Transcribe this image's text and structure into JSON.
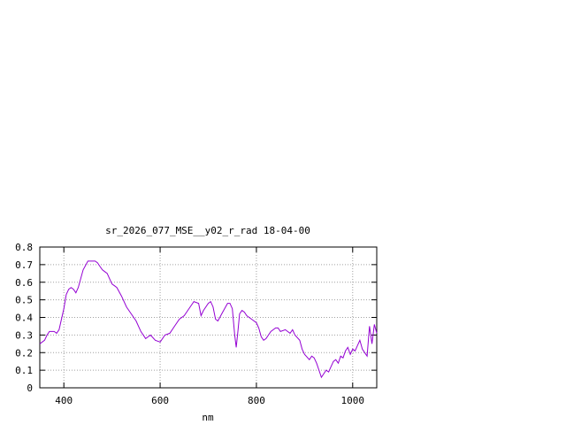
{
  "chart_data": {
    "type": "line",
    "title": "sr_2026_077_MSE__y02_r_rad 18-04-00",
    "xlabel": "nm",
    "ylabel": "",
    "xlim": [
      350,
      1050
    ],
    "ylim": [
      0,
      0.8
    ],
    "x_ticks": [
      400,
      600,
      800,
      1000
    ],
    "x_tick_labels": [
      "400",
      "600",
      "800",
      "1000"
    ],
    "y_ticks": [
      0,
      0.1,
      0.2,
      0.3,
      0.4,
      0.5,
      0.6,
      0.7,
      0.8
    ],
    "y_tick_labels": [
      "0",
      "0.1",
      "0.2",
      "0.3",
      "0.4",
      "0.5",
      "0.6",
      "0.7",
      "0.8"
    ],
    "grid": true,
    "legend": "none",
    "line_color": "#9400d3",
    "series": [
      {
        "x": [
          350,
          360,
          365,
          370,
          380,
          385,
          390,
          400,
          405,
          410,
          415,
          420,
          425,
          430,
          440,
          450,
          460,
          465,
          470,
          475,
          480,
          485,
          490,
          495,
          500,
          505,
          510,
          520,
          530,
          540,
          550,
          560,
          570,
          580,
          590,
          600,
          610,
          620,
          630,
          640,
          650,
          660,
          670,
          680,
          685,
          690,
          700,
          705,
          710,
          715,
          720,
          730,
          740,
          745,
          750,
          755,
          758,
          762,
          765,
          770,
          775,
          780,
          790,
          800,
          805,
          810,
          815,
          820,
          830,
          840,
          845,
          850,
          860,
          870,
          875,
          880,
          890,
          895,
          900,
          910,
          915,
          920,
          925,
          930,
          935,
          940,
          945,
          950,
          955,
          960,
          965,
          970,
          975,
          980,
          985,
          990,
          995,
          1000,
          1005,
          1010,
          1015,
          1020,
          1025,
          1030,
          1035,
          1040,
          1045,
          1050
        ],
        "y": [
          0.25,
          0.27,
          0.3,
          0.32,
          0.32,
          0.31,
          0.33,
          0.45,
          0.53,
          0.56,
          0.57,
          0.56,
          0.54,
          0.57,
          0.67,
          0.72,
          0.72,
          0.72,
          0.71,
          0.69,
          0.67,
          0.66,
          0.65,
          0.62,
          0.59,
          0.58,
          0.57,
          0.52,
          0.46,
          0.42,
          0.38,
          0.32,
          0.28,
          0.3,
          0.27,
          0.26,
          0.3,
          0.31,
          0.35,
          0.39,
          0.41,
          0.45,
          0.49,
          0.48,
          0.41,
          0.44,
          0.48,
          0.49,
          0.46,
          0.39,
          0.38,
          0.43,
          0.48,
          0.48,
          0.45,
          0.3,
          0.23,
          0.33,
          0.42,
          0.44,
          0.43,
          0.41,
          0.39,
          0.37,
          0.34,
          0.29,
          0.27,
          0.28,
          0.32,
          0.34,
          0.34,
          0.32,
          0.33,
          0.31,
          0.33,
          0.3,
          0.27,
          0.22,
          0.19,
          0.16,
          0.18,
          0.17,
          0.14,
          0.1,
          0.06,
          0.08,
          0.1,
          0.09,
          0.12,
          0.15,
          0.16,
          0.14,
          0.18,
          0.17,
          0.21,
          0.23,
          0.19,
          0.22,
          0.21,
          0.24,
          0.27,
          0.22,
          0.2,
          0.18,
          0.35,
          0.25,
          0.36,
          0.31
        ]
      }
    ]
  }
}
